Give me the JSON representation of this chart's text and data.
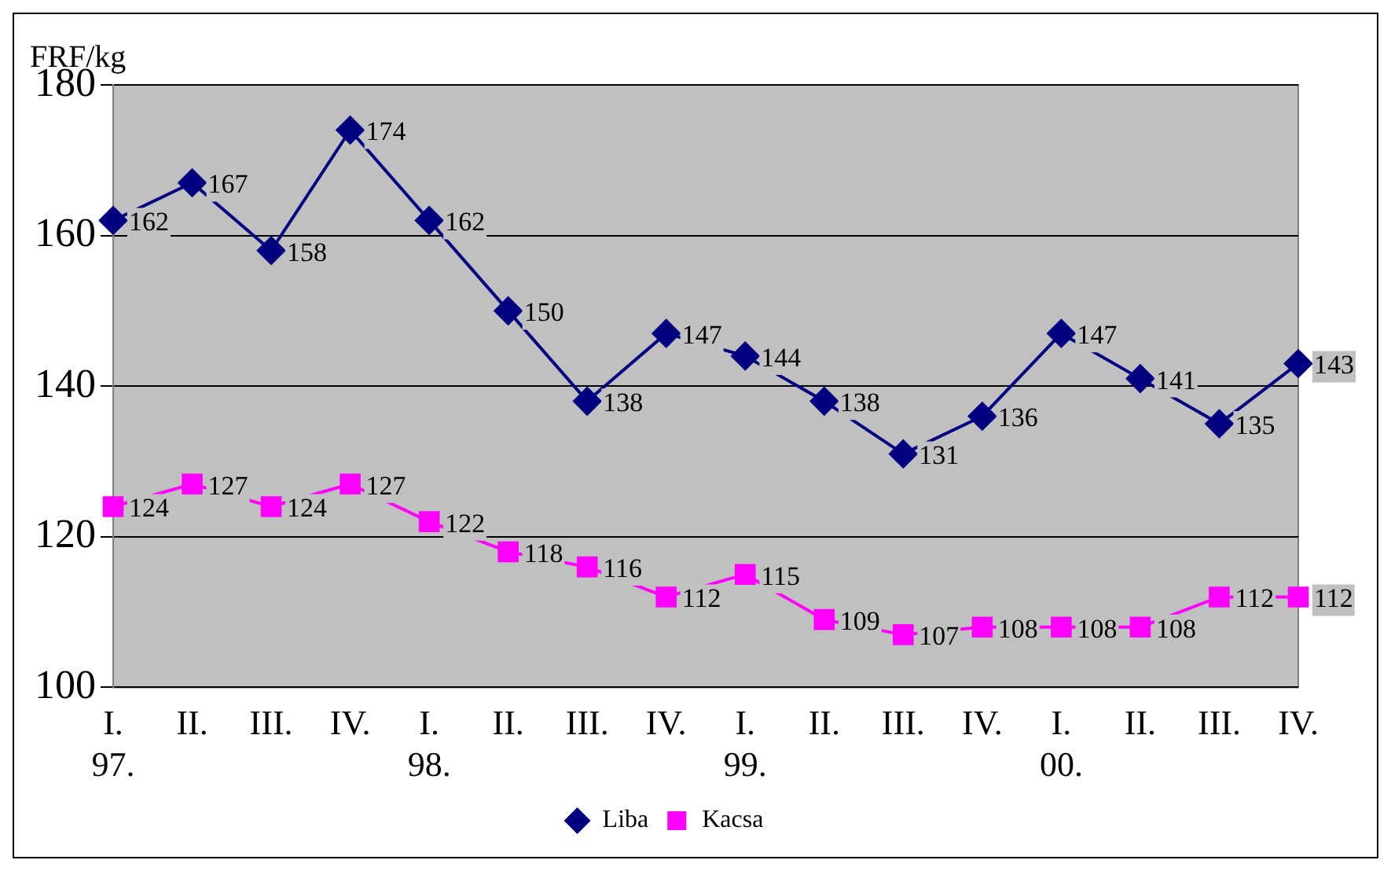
{
  "chart_data": {
    "type": "line",
    "ylabel": "FRF/kg",
    "categories": [
      "I.\n97.",
      "II.",
      "III.",
      "IV.",
      "I.\n98.",
      "II.",
      "III.",
      "IV.",
      "I.\n99.",
      "II.",
      "III.",
      "IV.",
      "I.\n00.",
      "II.",
      "III.",
      "IV."
    ],
    "series": [
      {
        "name": "Liba",
        "color": "#000080",
        "marker": "diamond",
        "values": [
          162,
          167,
          158,
          174,
          162,
          150,
          138,
          147,
          144,
          138,
          131,
          136,
          147,
          141,
          135,
          143
        ]
      },
      {
        "name": "Kacsa",
        "color": "#ff00ff",
        "marker": "square",
        "values": [
          124,
          127,
          124,
          127,
          122,
          118,
          116,
          112,
          115,
          109,
          107,
          108,
          108,
          108,
          112,
          112
        ]
      }
    ],
    "ylim": [
      100,
      180
    ],
    "yticks": [
      100,
      120,
      140,
      160,
      180
    ],
    "grid": "y",
    "legend": "bottom",
    "data_labels": true
  }
}
